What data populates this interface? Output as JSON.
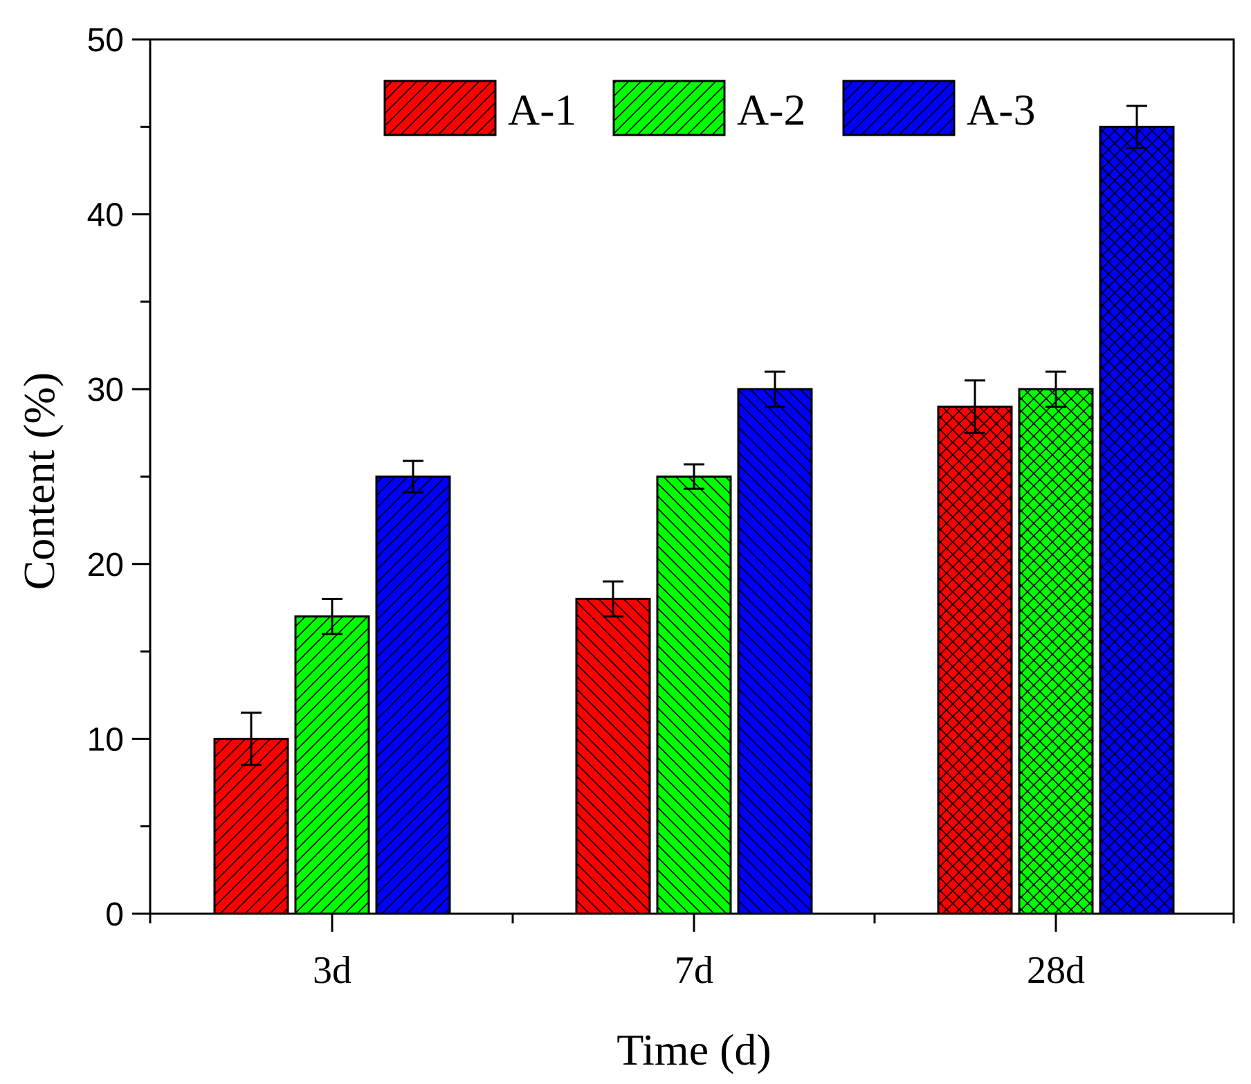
{
  "chart_data": {
    "type": "bar",
    "categories": [
      "3d",
      "7d",
      "28d"
    ],
    "series": [
      {
        "name": "A-1",
        "color": "#ff0000",
        "patterns": [
          "fwd",
          "back",
          "cross"
        ],
        "values": [
          10,
          18,
          29
        ],
        "errors": [
          1.5,
          1.0,
          1.5
        ]
      },
      {
        "name": "A-2",
        "color": "#00ff00",
        "patterns": [
          "fwd",
          "back",
          "cross"
        ],
        "values": [
          17,
          25,
          30
        ],
        "errors": [
          1.0,
          0.7,
          1.0
        ]
      },
      {
        "name": "A-3",
        "color": "#0000ff",
        "patterns": [
          "fwd",
          "back",
          "cross"
        ],
        "values": [
          25,
          30,
          45
        ],
        "errors": [
          0.9,
          1.0,
          1.2
        ]
      }
    ],
    "xlabel": "Time (d)",
    "ylabel": "Content (%)",
    "ylim": [
      0,
      50
    ],
    "yticks": [
      0,
      10,
      20,
      30,
      40,
      50
    ],
    "legend_position": "top"
  }
}
